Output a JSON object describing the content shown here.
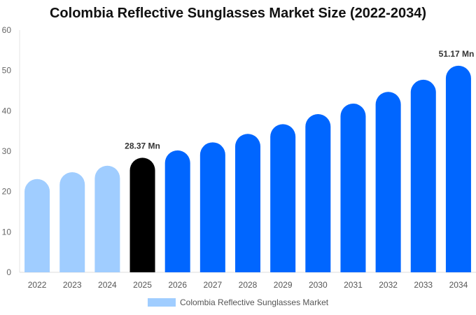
{
  "chart_data": {
    "type": "bar",
    "title": "Colombia Reflective Sunglasses Market Size (2022-2034)",
    "categories": [
      "2022",
      "2023",
      "2024",
      "2025",
      "2026",
      "2027",
      "2028",
      "2029",
      "2030",
      "2031",
      "2032",
      "2033",
      "2034"
    ],
    "series": [
      {
        "name": "Colombia Reflective Sunglasses Market",
        "values": [
          23.1,
          24.8,
          26.4,
          28.37,
          30.2,
          32.2,
          34.3,
          36.7,
          39.2,
          41.8,
          44.7,
          47.7,
          51.17
        ]
      }
    ],
    "data_labels": {
      "3": "28.37 Mn",
      "12": "51.17 Mn"
    },
    "ylim": [
      0,
      60
    ],
    "yticks": [
      0,
      10,
      20,
      30,
      40,
      50,
      60
    ],
    "grid": false,
    "legend": "bottom",
    "colors": {
      "historical": "#a0cdff",
      "base_year": "#000000",
      "forecast": "#0066ff"
    }
  }
}
